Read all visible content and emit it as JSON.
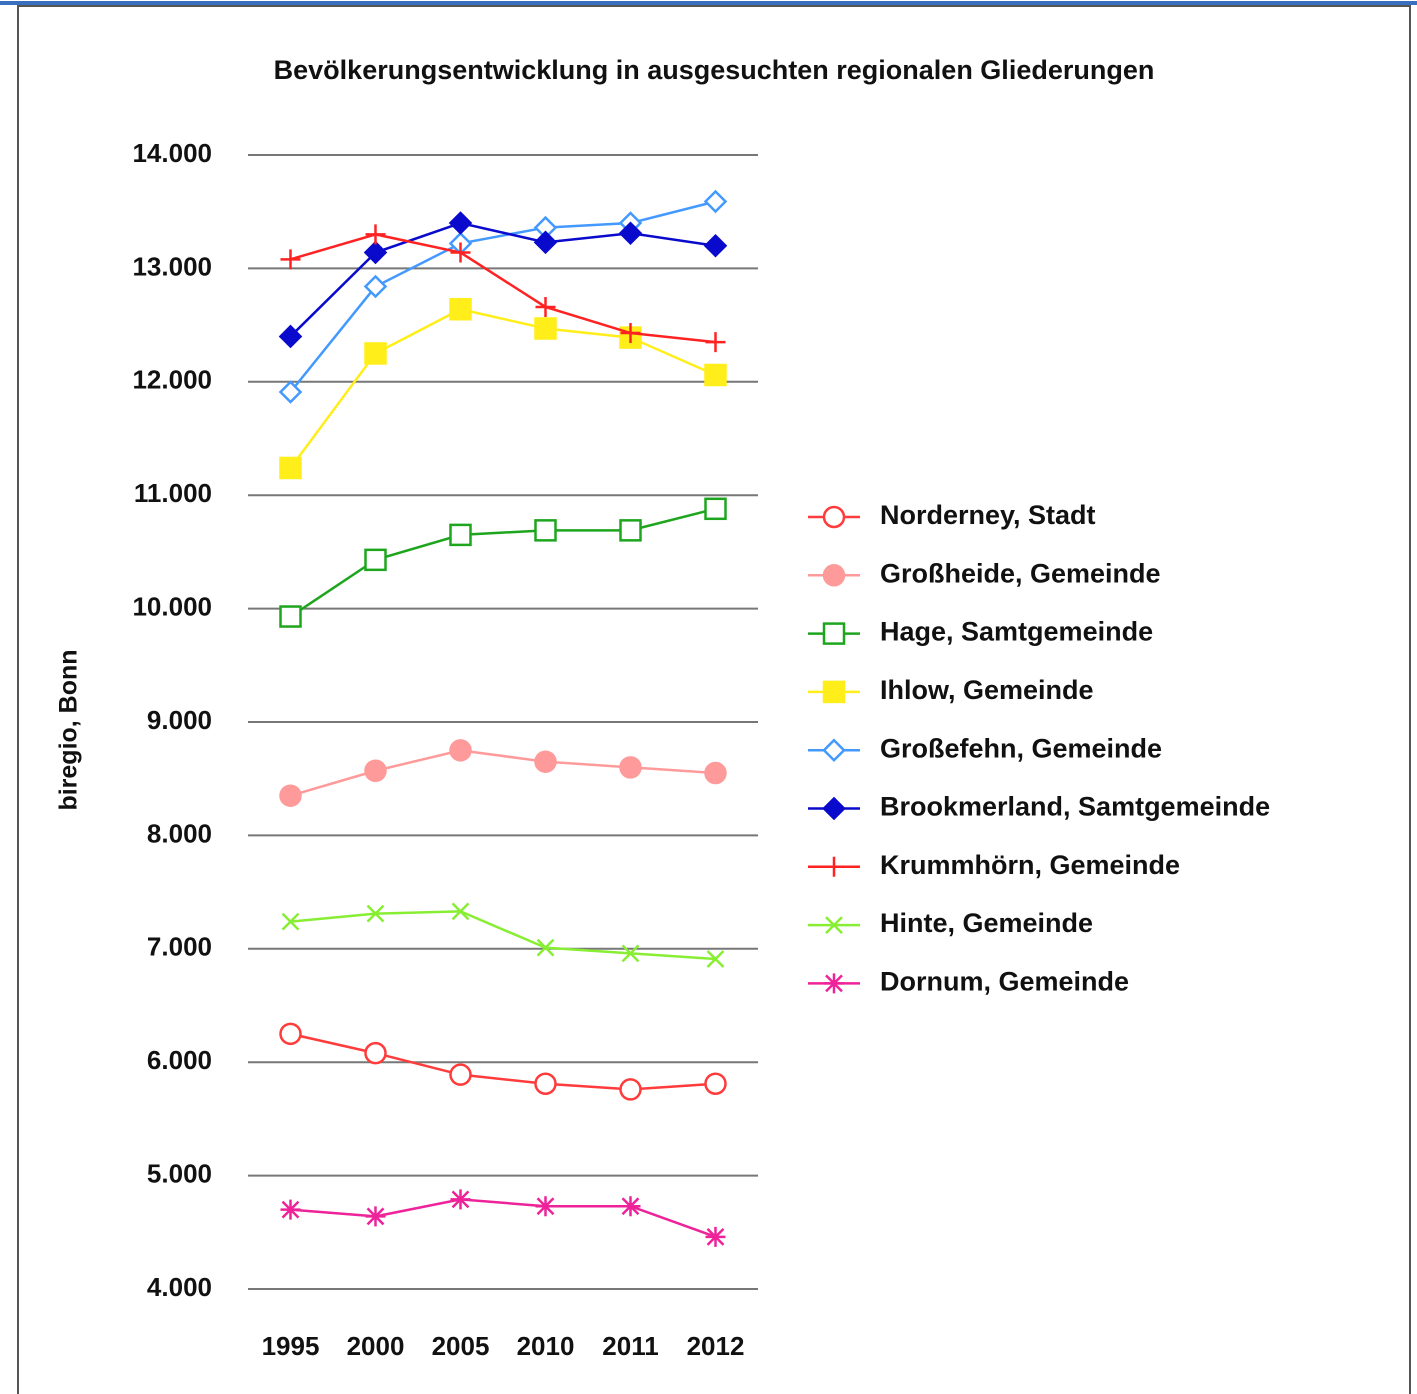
{
  "chart_data": {
    "type": "line",
    "title": "Bevölkerungsentwicklung in ausgesuchten regionalen Gliederungen",
    "y_label": "biregio, Bonn",
    "categories": [
      "1995",
      "2000",
      "2005",
      "2010",
      "2011",
      "2012"
    ],
    "ylim": [
      4000,
      14000
    ],
    "yticks": [
      {
        "value": 4000,
        "label": "4.000"
      },
      {
        "value": 5000,
        "label": "5.000"
      },
      {
        "value": 6000,
        "label": "6.000"
      },
      {
        "value": 7000,
        "label": "7.000"
      },
      {
        "value": 8000,
        "label": "8.000"
      },
      {
        "value": 9000,
        "label": "9.000"
      },
      {
        "value": 10000,
        "label": "10.000"
      },
      {
        "value": 11000,
        "label": "11.000"
      },
      {
        "value": 12000,
        "label": "12.000"
      },
      {
        "value": 13000,
        "label": "13.000"
      },
      {
        "value": 14000,
        "label": "14.000"
      }
    ],
    "grid": true,
    "legend": "right",
    "series": [
      {
        "name": "Norderney, Stadt",
        "color": "#ff3b3b",
        "marker": "circle-open",
        "values": [
          6250,
          6080,
          5890,
          5810,
          5760,
          5810
        ]
      },
      {
        "name": "Großheide, Gemeinde",
        "color": "#ff9a9a",
        "marker": "circle",
        "values": [
          8350,
          8570,
          8750,
          8650,
          8600,
          8550
        ]
      },
      {
        "name": "Hage, Samtgemeinde",
        "color": "#1ea51e",
        "marker": "square-open",
        "values": [
          9930,
          10430,
          10650,
          10690,
          10690,
          10880
        ]
      },
      {
        "name": "Ihlow, Gemeinde",
        "color": "#ffee1a",
        "marker": "square",
        "values": [
          11240,
          12250,
          12640,
          12470,
          12390,
          12060
        ]
      },
      {
        "name": "Großefehn, Gemeinde",
        "color": "#4499ff",
        "marker": "diamond-open",
        "values": [
          11910,
          12840,
          13220,
          13360,
          13400,
          13590
        ]
      },
      {
        "name": "Brookmerland, Samtgemeinde",
        "color": "#0a0acc",
        "marker": "diamond",
        "values": [
          12400,
          13140,
          13400,
          13230,
          13310,
          13200
        ]
      },
      {
        "name": "Krummhörn, Gemeinde",
        "color": "#ff2222",
        "marker": "plus",
        "values": [
          13080,
          13300,
          13140,
          12660,
          12430,
          12350
        ]
      },
      {
        "name": "Hinte, Gemeinde",
        "color": "#88ee33",
        "marker": "cross",
        "values": [
          7240,
          7310,
          7330,
          7010,
          6960,
          6910
        ]
      },
      {
        "name": "Dornum, Gemeinde",
        "color": "#ee2299",
        "marker": "asterisk",
        "values": [
          4700,
          4640,
          4790,
          4730,
          4730,
          4460
        ]
      }
    ]
  }
}
